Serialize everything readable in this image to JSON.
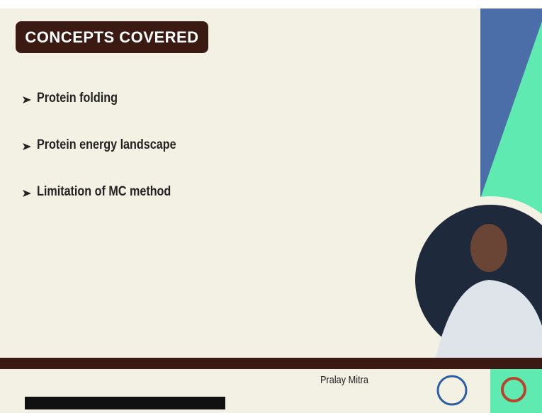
{
  "header": {
    "title": "CONCEPTS COVERED"
  },
  "bullets": [
    "Protein folding",
    "Protein energy landscape",
    "Limitation of MC method"
  ],
  "footer": {
    "presenter": "Pralay Mitra"
  }
}
